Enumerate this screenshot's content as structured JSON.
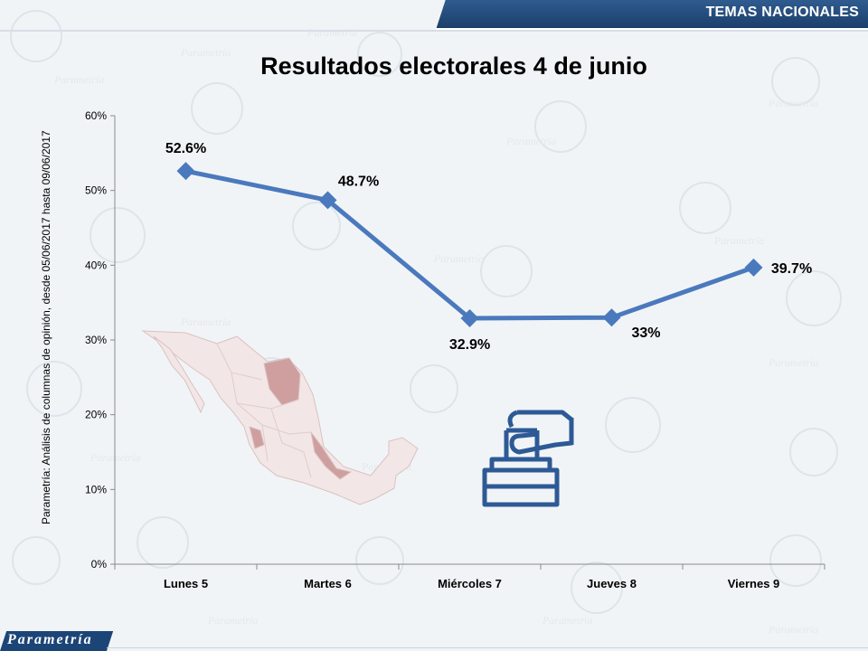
{
  "header": {
    "section_label": "TEMAS NACIONALES"
  },
  "footer": {
    "brand": "Parametría"
  },
  "source_note": "Parametría: Análisis de columnas de opinión, desde 05/06/2017 hasta 09/06/2017",
  "colors": {
    "line": "#4a79bd",
    "banner": "#1c4577",
    "map_fill": "#f3e6e6",
    "map_highlight": "#cf9f9f",
    "ballot_icon": "#2d5a96"
  },
  "chart_data": {
    "type": "line",
    "title": "Resultados electorales 4 de junio",
    "categories": [
      "Lunes 5",
      "Martes 6",
      "Miércoles 7",
      "Jueves 8",
      "Viernes 9"
    ],
    "series": [
      {
        "name": "Resultados electorales 4 de junio",
        "values": [
          52.6,
          48.7,
          32.9,
          33,
          39.7
        ]
      }
    ],
    "data_labels": [
      "52.6%",
      "48.7%",
      "32.9%",
      "33%",
      "39.7%"
    ],
    "ylim": [
      0,
      60
    ],
    "yticks": [
      0,
      10,
      20,
      30,
      40,
      50,
      60
    ],
    "ytick_labels": [
      "0%",
      "10%",
      "20%",
      "30%",
      "40%",
      "50%",
      "60%"
    ],
    "xlabel": "",
    "ylabel": "",
    "legend": "none",
    "grid": false
  }
}
